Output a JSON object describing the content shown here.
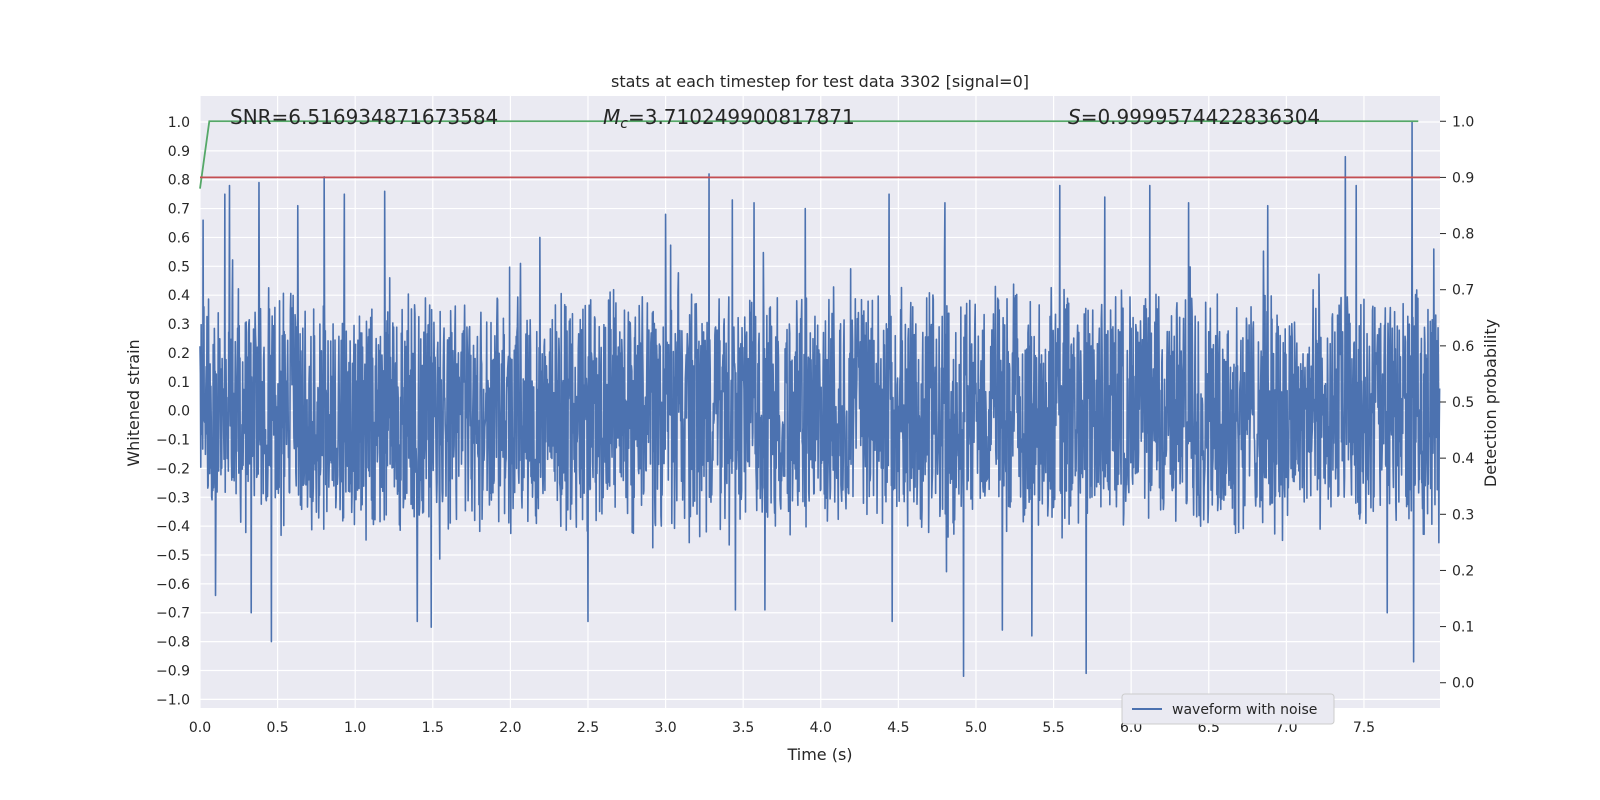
{
  "chart_data": {
    "type": "line",
    "title": "stats at each timestep for test data 3302 [signal=0]",
    "xlabel": "Time (s)",
    "ylabel": "Whitened strain",
    "y2label": "Detection probability",
    "xlim": [
      0.0,
      7.99
    ],
    "ylim": [
      -1.03,
      1.09
    ],
    "y2lim": [
      -0.045,
      1.045
    ],
    "x_ticks": [
      "0.0",
      "0.5",
      "1.0",
      "1.5",
      "2.0",
      "2.5",
      "3.0",
      "3.5",
      "4.0",
      "4.5",
      "5.0",
      "5.5",
      "6.0",
      "6.5",
      "7.0",
      "7.5"
    ],
    "y_ticks": [
      "1.0",
      "0.9",
      "0.8",
      "0.7",
      "0.6",
      "0.5",
      "0.4",
      "0.3",
      "0.2",
      "0.1",
      "0.0",
      "−0.1",
      "−0.2",
      "−0.3",
      "−0.4",
      "−0.5",
      "−0.6",
      "−0.7",
      "−0.8",
      "−0.9",
      "−1.0"
    ],
    "y2_ticks": [
      "1.0",
      "0.9",
      "0.8",
      "0.7",
      "0.6",
      "0.5",
      "0.4",
      "0.3",
      "0.2",
      "0.1",
      "0.0"
    ],
    "grid": true,
    "legend": {
      "position": "lower-right",
      "entries": [
        "waveform with noise"
      ]
    },
    "annotations": {
      "snr": "SNR=6.516934871673584",
      "mc_symbol": "M",
      "mc_sub": "c",
      "mc_value": "=3.710249900817871",
      "s_symbol": "S",
      "s_value": "=0.9999574422836304"
    },
    "series": [
      {
        "name": "waveform with noise",
        "axis": "left",
        "color": "#4c72b0",
        "description_only": false,
        "envelope": {
          "sample_rate_hz": 400,
          "duration_s": 7.99,
          "typical_positive_peak": 0.4,
          "typical_negative_peak": -0.42,
          "peaks": [
            {
              "x": 0.02,
              "y": 0.66
            },
            {
              "x": 0.1,
              "y": -0.64
            },
            {
              "x": 0.16,
              "y": 0.75
            },
            {
              "x": 0.19,
              "y": 0.78
            },
            {
              "x": 0.33,
              "y": -0.7
            },
            {
              "x": 0.38,
              "y": 0.79
            },
            {
              "x": 0.46,
              "y": -0.8
            },
            {
              "x": 0.63,
              "y": 0.71
            },
            {
              "x": 0.8,
              "y": 0.81
            },
            {
              "x": 0.93,
              "y": 0.75
            },
            {
              "x": 1.19,
              "y": 0.76
            },
            {
              "x": 1.4,
              "y": -0.73
            },
            {
              "x": 1.49,
              "y": -0.75
            },
            {
              "x": 2.19,
              "y": 0.6
            },
            {
              "x": 2.5,
              "y": -0.73
            },
            {
              "x": 3.0,
              "y": 0.68
            },
            {
              "x": 3.28,
              "y": 0.82
            },
            {
              "x": 3.43,
              "y": 0.73
            },
            {
              "x": 3.45,
              "y": -0.69
            },
            {
              "x": 3.57,
              "y": 0.72
            },
            {
              "x": 3.64,
              "y": -0.69
            },
            {
              "x": 3.9,
              "y": 0.7
            },
            {
              "x": 4.46,
              "y": -0.73
            },
            {
              "x": 4.44,
              "y": 0.75
            },
            {
              "x": 4.8,
              "y": 0.72
            },
            {
              "x": 4.92,
              "y": -0.92
            },
            {
              "x": 5.17,
              "y": -0.76
            },
            {
              "x": 5.36,
              "y": -0.78
            },
            {
              "x": 5.54,
              "y": 0.78
            },
            {
              "x": 5.71,
              "y": -0.91
            },
            {
              "x": 5.83,
              "y": 0.74
            },
            {
              "x": 6.12,
              "y": 0.78
            },
            {
              "x": 6.37,
              "y": 0.72
            },
            {
              "x": 6.88,
              "y": 0.71
            },
            {
              "x": 7.38,
              "y": 0.88
            },
            {
              "x": 7.45,
              "y": 0.78
            },
            {
              "x": 7.65,
              "y": -0.7
            },
            {
              "x": 7.81,
              "y": 1.0
            },
            {
              "x": 7.82,
              "y": -0.87
            },
            {
              "x": 7.95,
              "y": 0.56
            }
          ]
        }
      },
      {
        "name": "",
        "axis": "right",
        "color": "#55a868",
        "x": [
          0.0,
          0.06,
          7.85
        ],
        "y": [
          0.88,
          1.0,
          1.0
        ]
      },
      {
        "name": "",
        "axis": "right",
        "color": "#c44e52",
        "x": [
          0.0,
          7.99
        ],
        "y": [
          0.9,
          0.9
        ]
      }
    ]
  }
}
